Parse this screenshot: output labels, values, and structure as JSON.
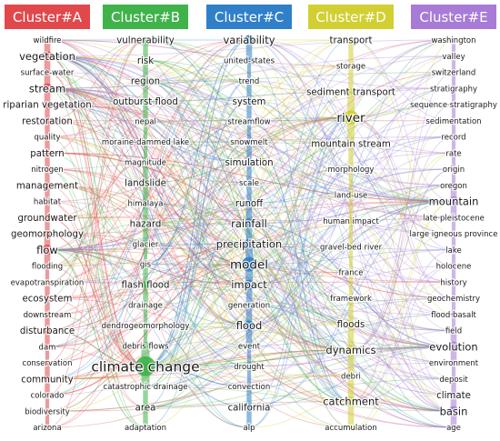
{
  "clusters": [
    {
      "id": "A",
      "header": "Cluster#A",
      "color": "#e0484b",
      "items": [
        {
          "label": "wildfire",
          "weight": 1
        },
        {
          "label": "vegetation",
          "weight": 3
        },
        {
          "label": "surface-water",
          "weight": 1
        },
        {
          "label": "stream",
          "weight": 3
        },
        {
          "label": "riparian vegetation",
          "weight": 2
        },
        {
          "label": "restoration",
          "weight": 2
        },
        {
          "label": "quality",
          "weight": 1
        },
        {
          "label": "pattern",
          "weight": 2
        },
        {
          "label": "nitrogen",
          "weight": 1
        },
        {
          "label": "management",
          "weight": 2
        },
        {
          "label": "habitat",
          "weight": 1
        },
        {
          "label": "groundwater",
          "weight": 2
        },
        {
          "label": "geomorphology",
          "weight": 2
        },
        {
          "label": "flow",
          "weight": 3
        },
        {
          "label": "flooding",
          "weight": 1
        },
        {
          "label": "evapotranspiration",
          "weight": 1
        },
        {
          "label": "ecosystem",
          "weight": 2
        },
        {
          "label": "downstream",
          "weight": 1
        },
        {
          "label": "disturbance",
          "weight": 2
        },
        {
          "label": "dam",
          "weight": 1
        },
        {
          "label": "conservation",
          "weight": 1
        },
        {
          "label": "community",
          "weight": 2
        },
        {
          "label": "colorado",
          "weight": 1
        },
        {
          "label": "biodiversity",
          "weight": 1
        },
        {
          "label": "arizona",
          "weight": 1
        }
      ]
    },
    {
      "id": "B",
      "header": "Cluster#B",
      "color": "#3fb34a",
      "items": [
        {
          "label": "vulnerability",
          "weight": 2
        },
        {
          "label": "risk",
          "weight": 2
        },
        {
          "label": "region",
          "weight": 2
        },
        {
          "label": "outburst flood",
          "weight": 2
        },
        {
          "label": "nepal",
          "weight": 1
        },
        {
          "label": "moraine-dammed lake",
          "weight": 1
        },
        {
          "label": "magnitude",
          "weight": 1
        },
        {
          "label": "landslide",
          "weight": 2
        },
        {
          "label": "himalaya",
          "weight": 1
        },
        {
          "label": "hazard",
          "weight": 2
        },
        {
          "label": "glacier",
          "weight": 1
        },
        {
          "label": "gis",
          "weight": 1
        },
        {
          "label": "flash flood",
          "weight": 2
        },
        {
          "label": "drainage",
          "weight": 1
        },
        {
          "label": "dendrogeomorphology",
          "weight": 1
        },
        {
          "label": "debris flows",
          "weight": 1
        },
        {
          "label": "climate change",
          "weight": 5
        },
        {
          "label": "catastrophic drainage",
          "weight": 1
        },
        {
          "label": "area",
          "weight": 2
        },
        {
          "label": "adaptation",
          "weight": 1
        }
      ]
    },
    {
      "id": "C",
      "header": "Cluster#C",
      "color": "#2f80c9",
      "items": [
        {
          "label": "variability",
          "weight": 3
        },
        {
          "label": "united-states",
          "weight": 1
        },
        {
          "label": "trend",
          "weight": 1
        },
        {
          "label": "system",
          "weight": 2
        },
        {
          "label": "streamflow",
          "weight": 1
        },
        {
          "label": "snowmelt",
          "weight": 1
        },
        {
          "label": "simulation",
          "weight": 2
        },
        {
          "label": "scale",
          "weight": 1
        },
        {
          "label": "runoff",
          "weight": 2
        },
        {
          "label": "rainfall",
          "weight": 3
        },
        {
          "label": "precipitation",
          "weight": 3
        },
        {
          "label": "model",
          "weight": 4
        },
        {
          "label": "impact",
          "weight": 3
        },
        {
          "label": "generation",
          "weight": 1
        },
        {
          "label": "flood",
          "weight": 3
        },
        {
          "label": "event",
          "weight": 1
        },
        {
          "label": "drought",
          "weight": 1
        },
        {
          "label": "convection",
          "weight": 1
        },
        {
          "label": "california",
          "weight": 2
        },
        {
          "label": "alp",
          "weight": 1
        }
      ]
    },
    {
      "id": "D",
      "header": "Cluster#D",
      "color": "#d2cf33",
      "items": [
        {
          "label": "transport",
          "weight": 2
        },
        {
          "label": "storage",
          "weight": 1
        },
        {
          "label": "sediment transport",
          "weight": 2
        },
        {
          "label": "river",
          "weight": 4
        },
        {
          "label": "mountain stream",
          "weight": 2
        },
        {
          "label": "morphology",
          "weight": 1
        },
        {
          "label": "land-use",
          "weight": 1
        },
        {
          "label": "human impact",
          "weight": 1
        },
        {
          "label": "gravel-bed river",
          "weight": 1
        },
        {
          "label": "france",
          "weight": 1
        },
        {
          "label": "framework",
          "weight": 1
        },
        {
          "label": "floods",
          "weight": 2
        },
        {
          "label": "dynamics",
          "weight": 3
        },
        {
          "label": "debri",
          "weight": 1
        },
        {
          "label": "catchment",
          "weight": 3
        },
        {
          "label": "accumulation",
          "weight": 1
        }
      ]
    },
    {
      "id": "E",
      "header": "Cluster#E",
      "color": "#a77bd6",
      "items": [
        {
          "label": "washington",
          "weight": 1
        },
        {
          "label": "valley",
          "weight": 1
        },
        {
          "label": "switzerland",
          "weight": 1
        },
        {
          "label": "stratigraphy",
          "weight": 1
        },
        {
          "label": "sequence stratigraphy",
          "weight": 1
        },
        {
          "label": "sedimentation",
          "weight": 1
        },
        {
          "label": "record",
          "weight": 1
        },
        {
          "label": "rate",
          "weight": 1
        },
        {
          "label": "origin",
          "weight": 1
        },
        {
          "label": "oregon",
          "weight": 1
        },
        {
          "label": "mountain",
          "weight": 3
        },
        {
          "label": "late pleistocene",
          "weight": 1
        },
        {
          "label": "large igneous province",
          "weight": 1
        },
        {
          "label": "lake",
          "weight": 1
        },
        {
          "label": "holocene",
          "weight": 1
        },
        {
          "label": "history",
          "weight": 1
        },
        {
          "label": "geochemistry",
          "weight": 1
        },
        {
          "label": "flood basalt",
          "weight": 1
        },
        {
          "label": "field",
          "weight": 1
        },
        {
          "label": "evolution",
          "weight": 3
        },
        {
          "label": "environment",
          "weight": 1
        },
        {
          "label": "deposit",
          "weight": 1
        },
        {
          "label": "climate",
          "weight": 2
        },
        {
          "label": "basin",
          "weight": 3
        },
        {
          "label": "age",
          "weight": 1
        }
      ]
    }
  ]
}
